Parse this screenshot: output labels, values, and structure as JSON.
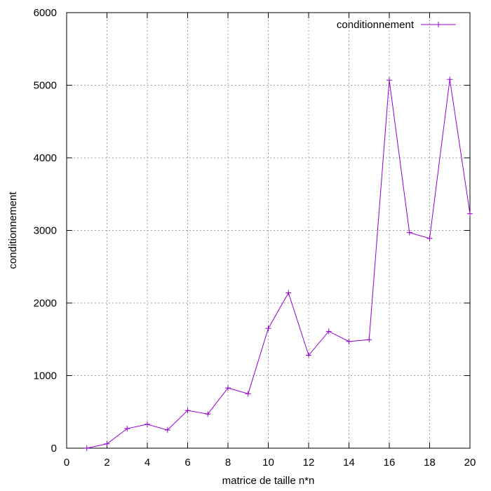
{
  "chart_data": {
    "type": "line",
    "title": "",
    "xlabel": "matrice de taille n*n",
    "ylabel": "conditionnement",
    "xlim": [
      0,
      20
    ],
    "ylim": [
      0,
      6000
    ],
    "x_ticks": [
      0,
      2,
      4,
      6,
      8,
      10,
      12,
      14,
      16,
      18,
      20
    ],
    "y_ticks": [
      0,
      1000,
      2000,
      3000,
      4000,
      5000,
      6000
    ],
    "grid": true,
    "legend_position": "top-right",
    "series": [
      {
        "name": "conditionnement",
        "color": "#9400d3",
        "marker": "plus",
        "x": [
          1,
          2,
          3,
          4,
          5,
          6,
          7,
          8,
          9,
          10,
          11,
          12,
          13,
          14,
          15,
          16,
          17,
          18,
          19,
          20
        ],
        "y": [
          1,
          60,
          270,
          330,
          250,
          520,
          470,
          830,
          750,
          1650,
          2140,
          1280,
          1610,
          1470,
          1495,
          5070,
          2970,
          2890,
          5080,
          3230
        ]
      }
    ]
  }
}
